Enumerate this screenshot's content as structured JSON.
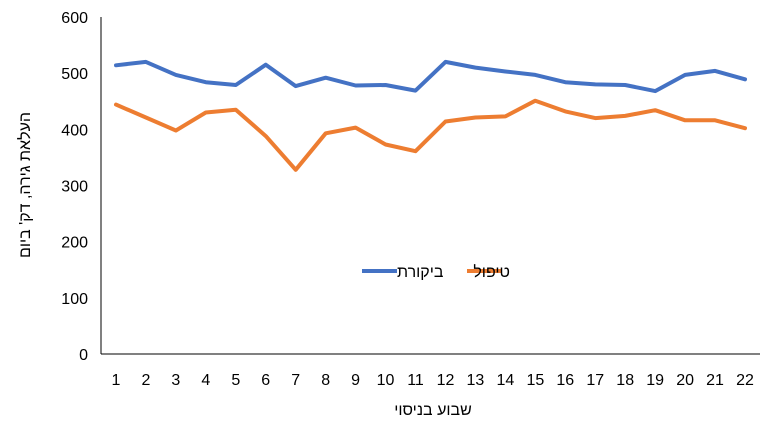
{
  "chart_data": {
    "type": "line",
    "categories": [
      "1",
      "2",
      "3",
      "4",
      "5",
      "6",
      "7",
      "8",
      "9",
      "10",
      "11",
      "12",
      "13",
      "14",
      "15",
      "16",
      "17",
      "18",
      "19",
      "20",
      "21",
      "22"
    ],
    "series": [
      {
        "name": "ביקורת",
        "color": "#4472C4",
        "values": [
          514,
          520,
          497,
          484,
          479,
          515,
          477,
          492,
          478,
          479,
          469,
          520,
          510,
          503,
          497,
          484,
          480,
          479,
          468,
          497,
          504,
          489
        ]
      },
      {
        "name": "טיפול",
        "color": "#ED7D31",
        "values": [
          444,
          421,
          398,
          430,
          435,
          388,
          328,
          393,
          403,
          373,
          361,
          414,
          421,
          423,
          451,
          432,
          420,
          424,
          434,
          416,
          416,
          402
        ]
      }
    ],
    "title": "",
    "xlabel": "שבוע בניסוי",
    "ylabel": "העלאת גירה, דק' ביום",
    "ylim": [
      0,
      600
    ],
    "yticks": [
      0,
      100,
      200,
      300,
      400,
      500,
      600
    ],
    "grid": false,
    "legend_position": "center-right"
  }
}
